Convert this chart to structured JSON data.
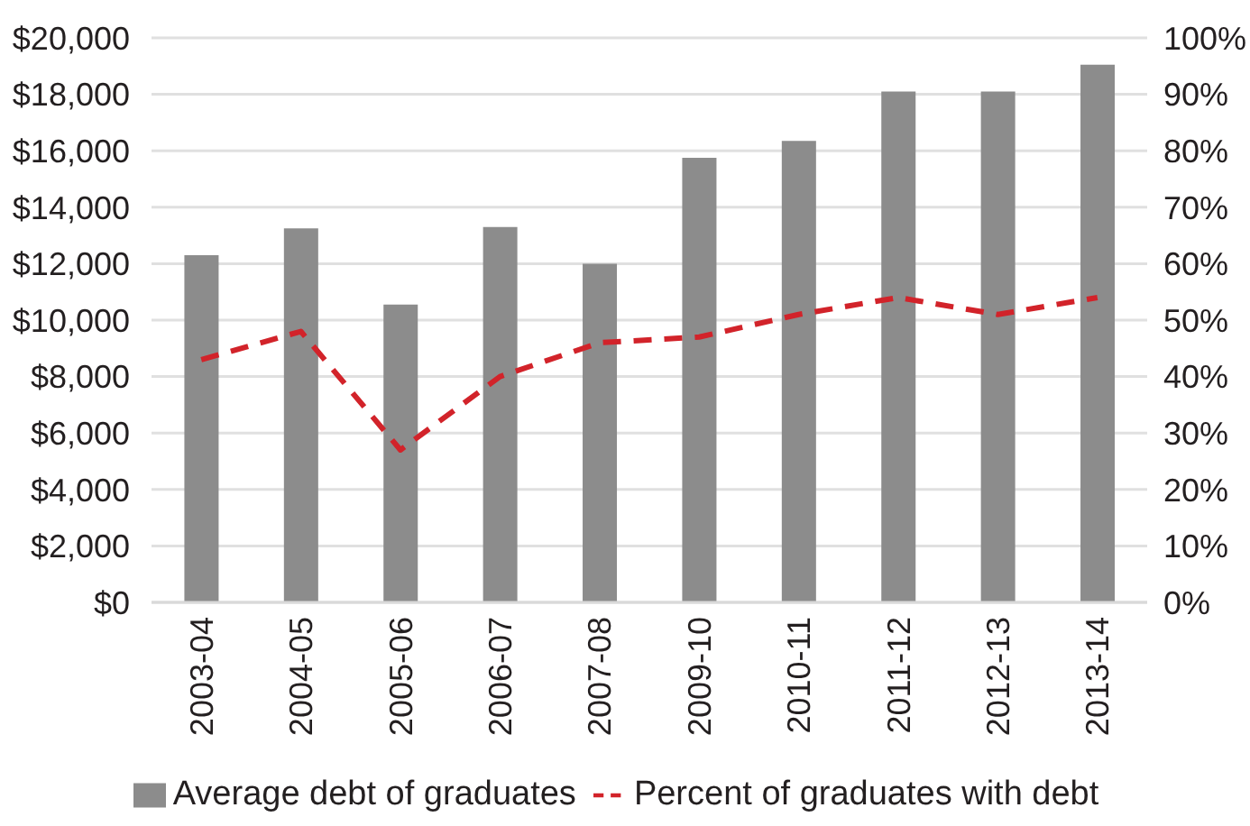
{
  "chart_data": {
    "type": "bar",
    "categories": [
      "2003-04",
      "2004-05",
      "2005-06",
      "2006-07",
      "2007-08",
      "2009-10",
      "2010-11",
      "2011-12",
      "2012-13",
      "2013-14"
    ],
    "series": [
      {
        "name": "Average debt of graduates",
        "color": "#8c8c8c",
        "values": [
          12300,
          13250,
          10550,
          13300,
          12000,
          15750,
          16350,
          18100,
          18100,
          19050
        ]
      },
      {
        "name": "Percent of graduates with debt",
        "type": "line",
        "axis": "y2",
        "color": "#d2232a",
        "values": [
          43,
          48,
          27,
          40,
          46,
          47,
          51,
          54,
          51,
          54
        ]
      }
    ],
    "ylim": [
      0,
      20000
    ],
    "yticks": [
      {
        "value": 0,
        "label": "$0"
      },
      {
        "value": 2000,
        "label": "$2,000"
      },
      {
        "value": 4000,
        "label": "$4,000"
      },
      {
        "value": 6000,
        "label": "$6,000"
      },
      {
        "value": 8000,
        "label": "$8,000"
      },
      {
        "value": 10000,
        "label": "$10,000"
      },
      {
        "value": 12000,
        "label": "$12,000"
      },
      {
        "value": 14000,
        "label": "$14,000"
      },
      {
        "value": 16000,
        "label": "$16,000"
      },
      {
        "value": 18000,
        "label": "$18,000"
      },
      {
        "value": 20000,
        "label": "$20,000"
      }
    ],
    "y2lim": [
      0,
      100
    ],
    "y2ticks": [
      {
        "value": 0,
        "label": "0%"
      },
      {
        "value": 10,
        "label": "10%"
      },
      {
        "value": 20,
        "label": "20%"
      },
      {
        "value": 30,
        "label": "30%"
      },
      {
        "value": 40,
        "label": "40%"
      },
      {
        "value": 50,
        "label": "50%"
      },
      {
        "value": 60,
        "label": "60%"
      },
      {
        "value": 70,
        "label": "70%"
      },
      {
        "value": 80,
        "label": "80%"
      },
      {
        "value": 90,
        "label": "90%"
      },
      {
        "value": 100,
        "label": "100%"
      }
    ],
    "grid": "y",
    "legend": "bottom",
    "line_style": "dashed",
    "marker": "none"
  }
}
